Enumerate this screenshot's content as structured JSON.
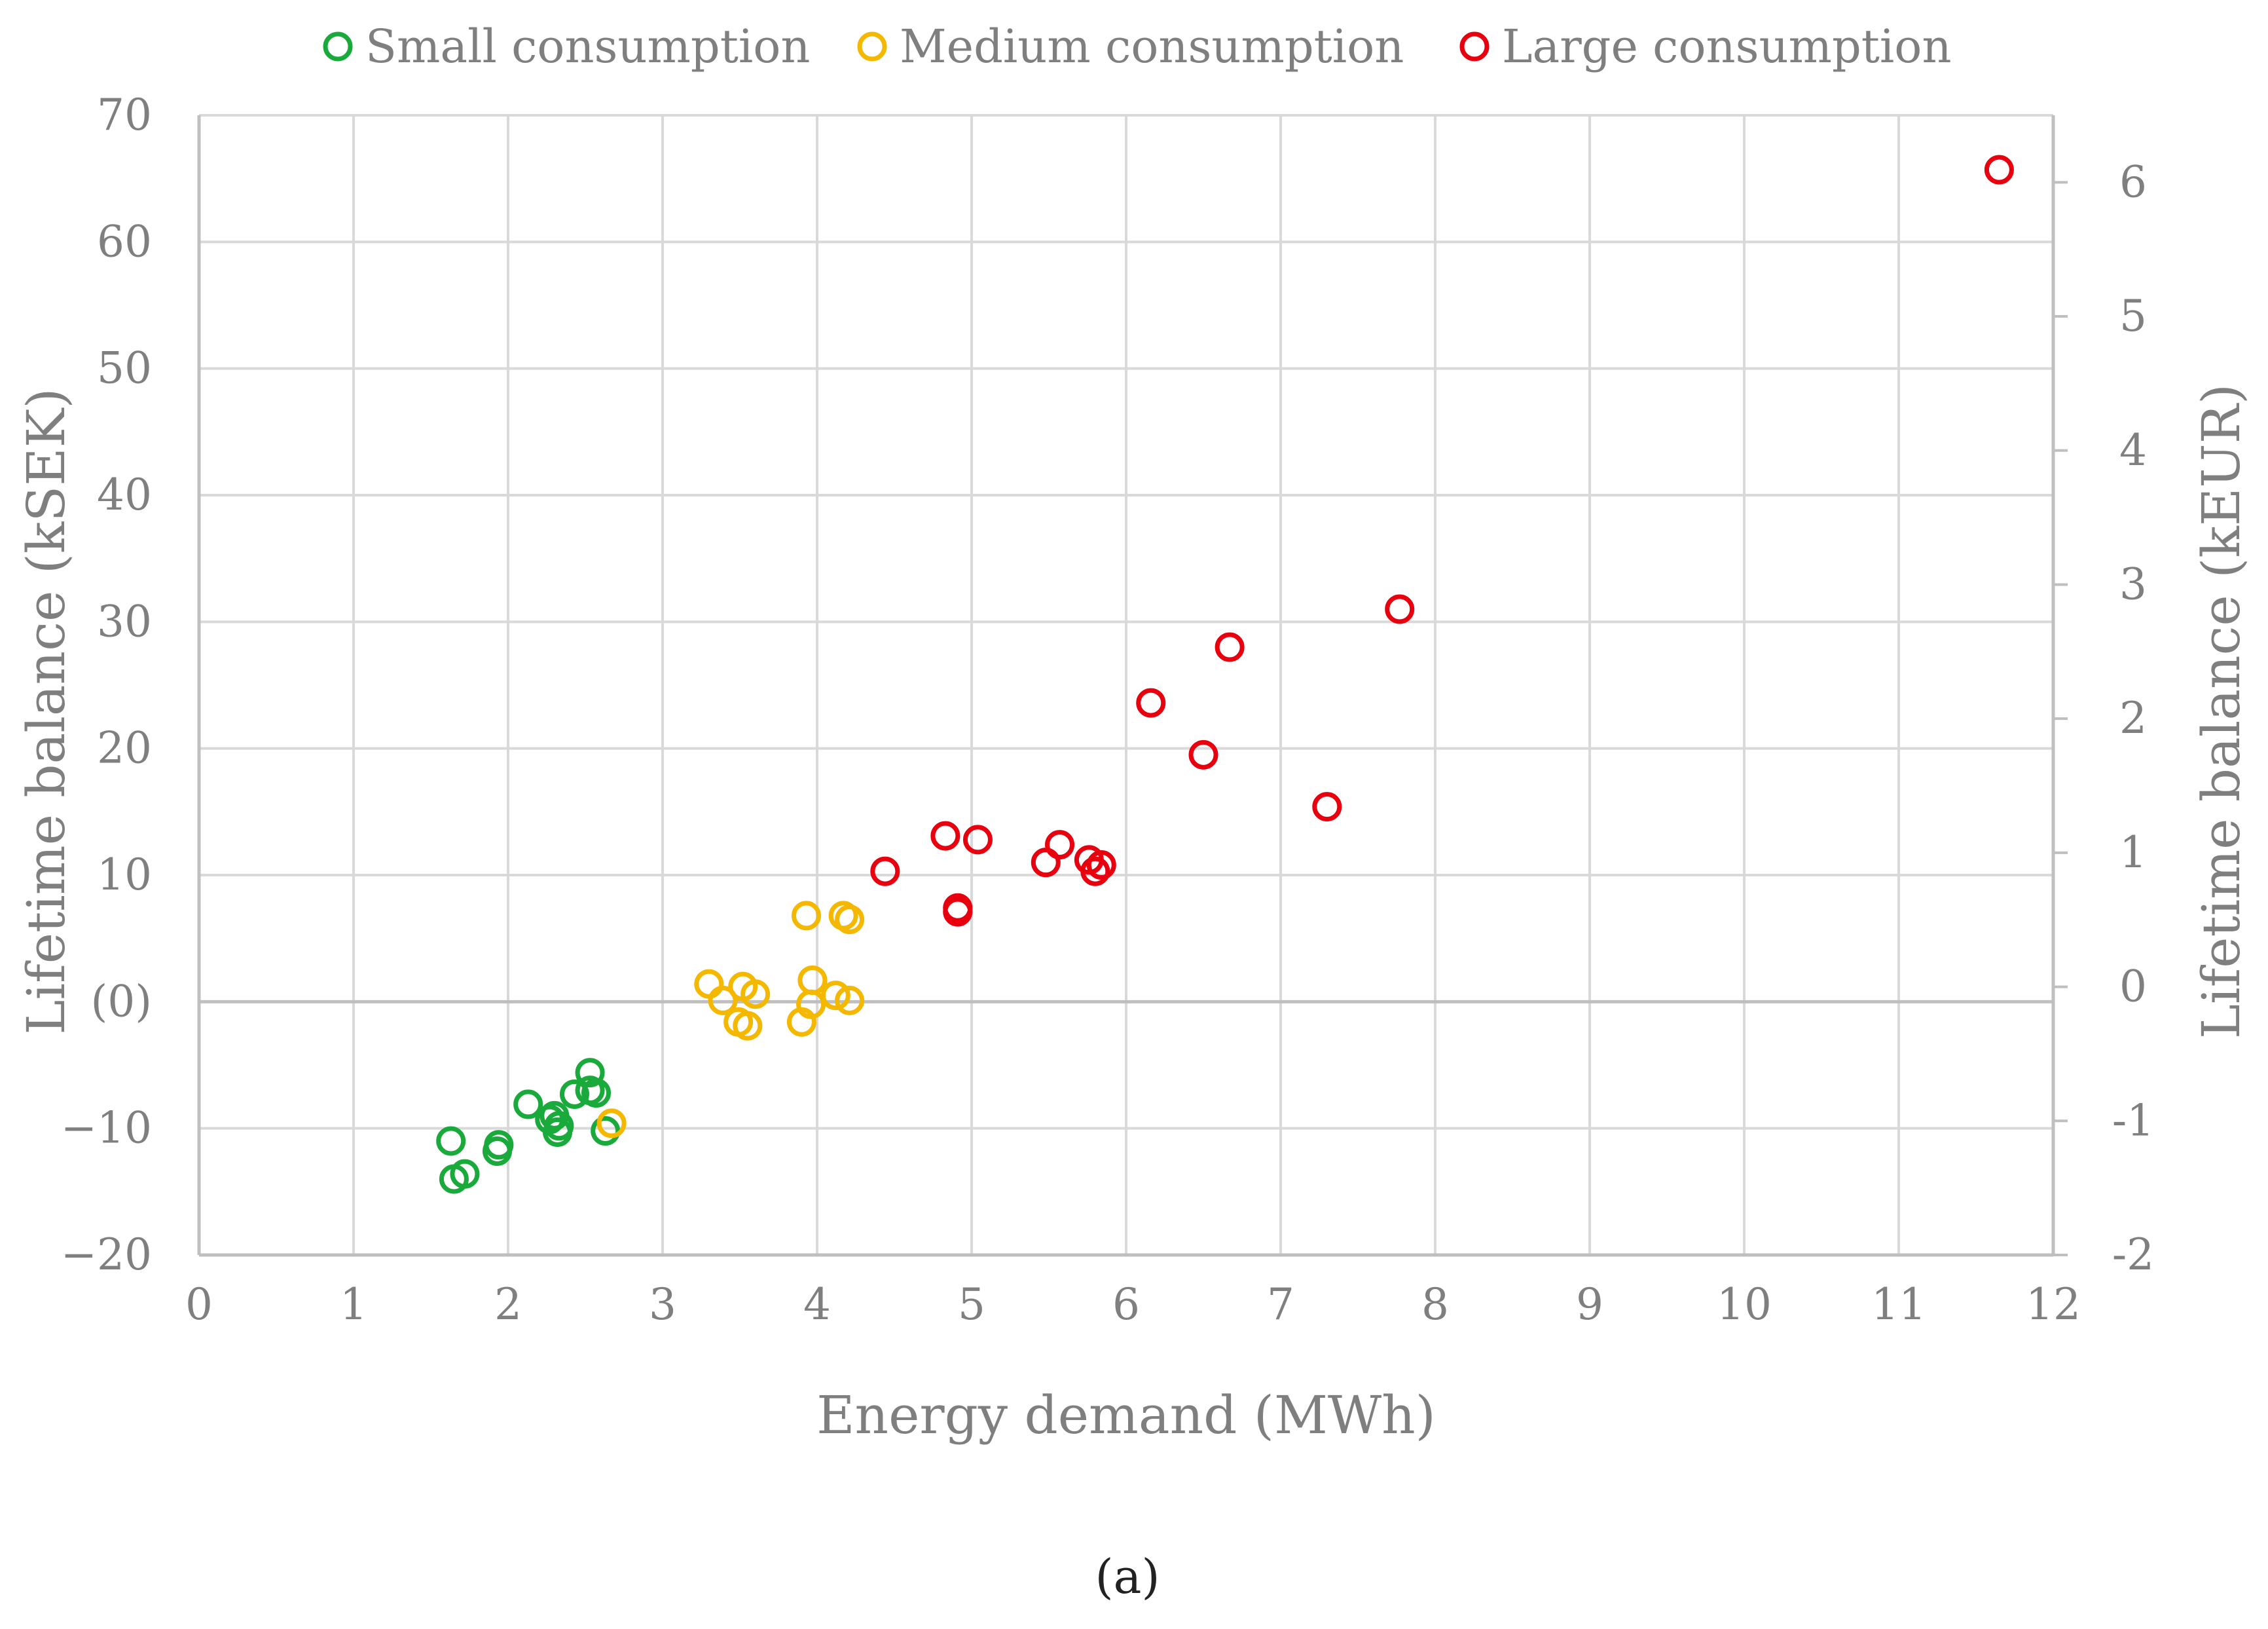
{
  "chart_data": {
    "type": "scatter",
    "caption": "(a)",
    "xlabel": "Energy demand (MWh)",
    "ylabel": "Lifetime balance (kSEK)",
    "y2label": "Lifetime balance (kEUR)",
    "xlim": [
      0,
      12
    ],
    "ylim": [
      -20,
      70
    ],
    "y2lim": [
      -2,
      6.5
    ],
    "grid": true,
    "legend_position": "top",
    "x_ticks": [
      {
        "value": 0,
        "label": "0"
      },
      {
        "value": 1,
        "label": "1"
      },
      {
        "value": 2,
        "label": "2"
      },
      {
        "value": 3,
        "label": "3"
      },
      {
        "value": 4,
        "label": "4"
      },
      {
        "value": 5,
        "label": "5"
      },
      {
        "value": 6,
        "label": "6"
      },
      {
        "value": 7,
        "label": "7"
      },
      {
        "value": 8,
        "label": "8"
      },
      {
        "value": 9,
        "label": "9"
      },
      {
        "value": 10,
        "label": "10"
      },
      {
        "value": 11,
        "label": "11"
      },
      {
        "value": 12,
        "label": "12"
      }
    ],
    "y_ticks": [
      {
        "value": -20,
        "label": "−20"
      },
      {
        "value": -10,
        "label": "−10"
      },
      {
        "value": 0,
        "label": "(0)"
      },
      {
        "value": 10,
        "label": "10"
      },
      {
        "value": 20,
        "label": "20"
      },
      {
        "value": 30,
        "label": "30"
      },
      {
        "value": 40,
        "label": "40"
      },
      {
        "value": 50,
        "label": "50"
      },
      {
        "value": 60,
        "label": "60"
      },
      {
        "value": 70,
        "label": "70"
      }
    ],
    "y2_ticks": [
      {
        "value": -2,
        "label": "-2"
      },
      {
        "value": -1,
        "label": "-1"
      },
      {
        "value": 0,
        "label": "0"
      },
      {
        "value": 1,
        "label": "1"
      },
      {
        "value": 2,
        "label": "2"
      },
      {
        "value": 3,
        "label": "3"
      },
      {
        "value": 4,
        "label": "4"
      },
      {
        "value": 5,
        "label": "5"
      },
      {
        "value": 6,
        "label": "6"
      }
    ],
    "series": [
      {
        "name": "Small consumption",
        "color": "#1aaa3c",
        "points": [
          [
            1.63,
            -11.0
          ],
          [
            1.65,
            -14.0
          ],
          [
            1.72,
            -13.6
          ],
          [
            1.93,
            -11.8
          ],
          [
            1.94,
            -11.3
          ],
          [
            2.13,
            -8.1
          ],
          [
            2.27,
            -9.3
          ],
          [
            2.3,
            -9.0
          ],
          [
            2.32,
            -10.3
          ],
          [
            2.33,
            -9.8
          ],
          [
            2.43,
            -7.3
          ],
          [
            2.53,
            -5.6
          ],
          [
            2.53,
            -7.0
          ],
          [
            2.57,
            -7.2
          ],
          [
            2.63,
            -10.2
          ]
        ]
      },
      {
        "name": "Medium consumption",
        "color": "#f5b800",
        "points": [
          [
            2.67,
            -9.6
          ],
          [
            3.3,
            1.4
          ],
          [
            3.39,
            0.1
          ],
          [
            3.49,
            -1.6
          ],
          [
            3.52,
            1.2
          ],
          [
            3.55,
            -1.9
          ],
          [
            3.6,
            0.6
          ],
          [
            3.9,
            -1.6
          ],
          [
            3.93,
            6.8
          ],
          [
            3.96,
            -0.2
          ],
          [
            3.97,
            1.7
          ],
          [
            4.12,
            0.5
          ],
          [
            4.17,
            6.8
          ],
          [
            4.21,
            6.5
          ],
          [
            4.21,
            0.1
          ]
        ]
      },
      {
        "name": "Large consumption",
        "color": "#e8000f",
        "points": [
          [
            4.44,
            10.3
          ],
          [
            4.83,
            13.1
          ],
          [
            4.91,
            7.4
          ],
          [
            4.91,
            7.1
          ],
          [
            5.04,
            12.8
          ],
          [
            5.48,
            11.0
          ],
          [
            5.57,
            12.4
          ],
          [
            5.76,
            11.2
          ],
          [
            5.8,
            10.3
          ],
          [
            5.84,
            10.8
          ],
          [
            6.16,
            23.6
          ],
          [
            6.5,
            19.5
          ],
          [
            6.67,
            28.0
          ],
          [
            7.3,
            15.4
          ],
          [
            7.77,
            31.0
          ],
          [
            11.65,
            65.7
          ]
        ]
      }
    ]
  }
}
